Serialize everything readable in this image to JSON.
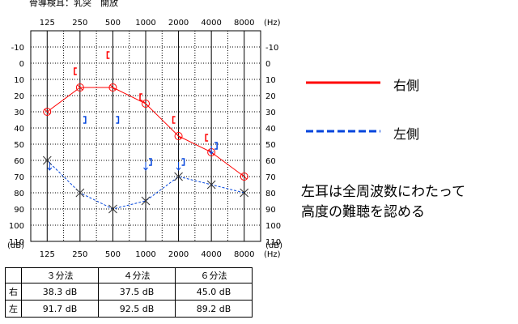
{
  "header": {
    "title": "骨導検耳：乳突　開放"
  },
  "chart_data": {
    "type": "line",
    "x": [
      125,
      250,
      500,
      1000,
      2000,
      4000,
      8000
    ],
    "x_tick_labels": [
      "125",
      "250",
      "500",
      "1000",
      "2000",
      "4000",
      "8000"
    ],
    "x_unit": "(Hz)",
    "y_tick_labels": [
      "-10",
      "0",
      "10",
      "20",
      "30",
      "40",
      "50",
      "60",
      "70",
      "80",
      "90",
      "100",
      "110"
    ],
    "y_unit": "(dB)",
    "ylim": [
      -10,
      120
    ],
    "y_inverted": true,
    "series": [
      {
        "name": "右側",
        "color": "#ff0000",
        "style": "solid",
        "marker": "circle",
        "values": [
          40,
          25,
          25,
          35,
          55,
          65,
          80
        ]
      },
      {
        "name": "左側",
        "color": "#0044dd",
        "style": "dashed",
        "marker": "cross",
        "values": [
          70,
          90,
          100,
          95,
          80,
          85,
          90
        ]
      }
    ],
    "bone_conduction": {
      "right": {
        "color": "#ff0000",
        "marker": "[",
        "points": [
          [
            250,
            15
          ],
          [
            500,
            5
          ],
          [
            1000,
            31
          ],
          [
            2000,
            45
          ],
          [
            4000,
            56
          ]
        ]
      },
      "left": {
        "color": "#0044dd",
        "marker": "]",
        "points": [
          [
            250,
            45
          ],
          [
            500,
            45
          ],
          [
            1000,
            71
          ],
          [
            2000,
            71
          ],
          [
            4000,
            61
          ]
        ]
      }
    },
    "scale_out_arrows": [
      {
        "x": 125,
        "y": 70,
        "color": "#0044dd"
      },
      {
        "x": 1000,
        "y": 70,
        "color": "#0044dd"
      },
      {
        "x": 2000,
        "y": 70,
        "color": "#0044dd"
      },
      {
        "x": 4000,
        "y": 60,
        "color": "#0044dd"
      }
    ]
  },
  "legend": {
    "right_label": "右側",
    "left_label": "左側"
  },
  "note": {
    "line1": "左耳は全周波数にわたって",
    "line2": "高度の難聴を認める"
  },
  "table": {
    "headers": [
      "３分法",
      "４分法",
      "６分法"
    ],
    "rows": [
      {
        "label": "右",
        "values": [
          "38.3 dB",
          "37.5 dB",
          "45.0 dB"
        ]
      },
      {
        "label": "左",
        "values": [
          "91.7 dB",
          "92.5 dB",
          "89.2 dB"
        ]
      }
    ]
  }
}
